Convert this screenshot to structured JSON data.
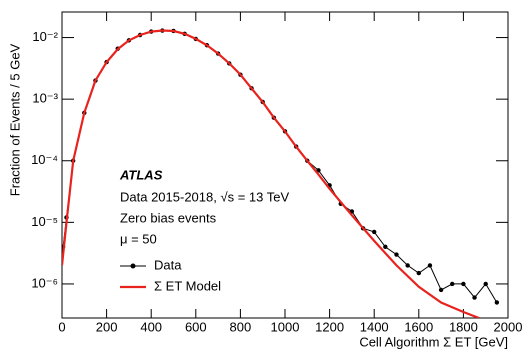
{
  "chart_data": {
    "type": "line",
    "xlabel": "Cell Algorithm Σ ET  [GeV]",
    "ylabel": "Fraction of Events / 5 GeV",
    "annotations": [
      "ATLAS",
      "Data 2015-2018, √s = 13 TeV",
      "Zero bias events",
      "μ = 50"
    ],
    "xlim": [
      0,
      2000
    ],
    "xticks": [
      0,
      200,
      400,
      600,
      800,
      1000,
      1200,
      1400,
      1600,
      1800,
      2000
    ],
    "ylim": [
      2.8e-07,
      0.026
    ],
    "log_y": true,
    "yticks": [
      {
        "value": 1e-06,
        "label": "10⁻⁶"
      },
      {
        "value": 1e-05,
        "label": "10⁻⁵"
      },
      {
        "value": 0.0001,
        "label": "10⁻⁴"
      },
      {
        "value": 0.001,
        "label": "10⁻³"
      },
      {
        "value": 0.01,
        "label": "10⁻²"
      }
    ],
    "legend": "lower left",
    "series": [
      {
        "name": "Data",
        "color": "#000000",
        "marker": true,
        "x": [
          5,
          20,
          50,
          100,
          150,
          200,
          250,
          300,
          350,
          400,
          450,
          500,
          550,
          600,
          650,
          700,
          750,
          800,
          850,
          900,
          950,
          1000,
          1050,
          1100,
          1150,
          1200,
          1250,
          1300,
          1350,
          1400,
          1450,
          1500,
          1550,
          1600,
          1650,
          1700,
          1750,
          1800,
          1850,
          1900,
          1950
        ],
        "values": [
          4e-06,
          1.2e-05,
          0.0001,
          0.0006,
          0.002,
          0.004,
          0.0066,
          0.009,
          0.011,
          0.0125,
          0.013,
          0.0128,
          0.0115,
          0.0095,
          0.0075,
          0.0055,
          0.0038,
          0.0025,
          0.0015,
          0.0009,
          0.0005,
          0.0003,
          0.00017,
          0.0001,
          7e-05,
          4e-05,
          2e-05,
          1.5e-05,
          8e-06,
          7e-06,
          4e-06,
          3e-06,
          2e-06,
          1.5e-06,
          2e-06,
          8e-07,
          1e-06,
          1e-06,
          6e-07,
          1e-06,
          5e-07
        ]
      },
      {
        "name": "Σ ET Model",
        "color": "#e8231e",
        "marker": false,
        "x": [
          0,
          20,
          50,
          100,
          150,
          200,
          250,
          300,
          350,
          400,
          450,
          500,
          550,
          600,
          650,
          700,
          750,
          800,
          850,
          900,
          950,
          1000,
          1050,
          1100,
          1150,
          1200,
          1300,
          1400,
          1500,
          1600,
          1700,
          1800,
          1870
        ],
        "values": [
          2e-06,
          1e-05,
          0.0001,
          0.0006,
          0.002,
          0.004,
          0.0065,
          0.009,
          0.011,
          0.0125,
          0.013,
          0.0128,
          0.0115,
          0.0095,
          0.0075,
          0.0055,
          0.0038,
          0.0025,
          0.0015,
          0.0009,
          0.0005,
          0.0003,
          0.00017,
          0.0001,
          6e-05,
          3.5e-05,
          1.3e-05,
          5e-06,
          2e-06,
          9e-07,
          5e-07,
          3.5e-07,
          2.8e-07
        ]
      }
    ]
  }
}
